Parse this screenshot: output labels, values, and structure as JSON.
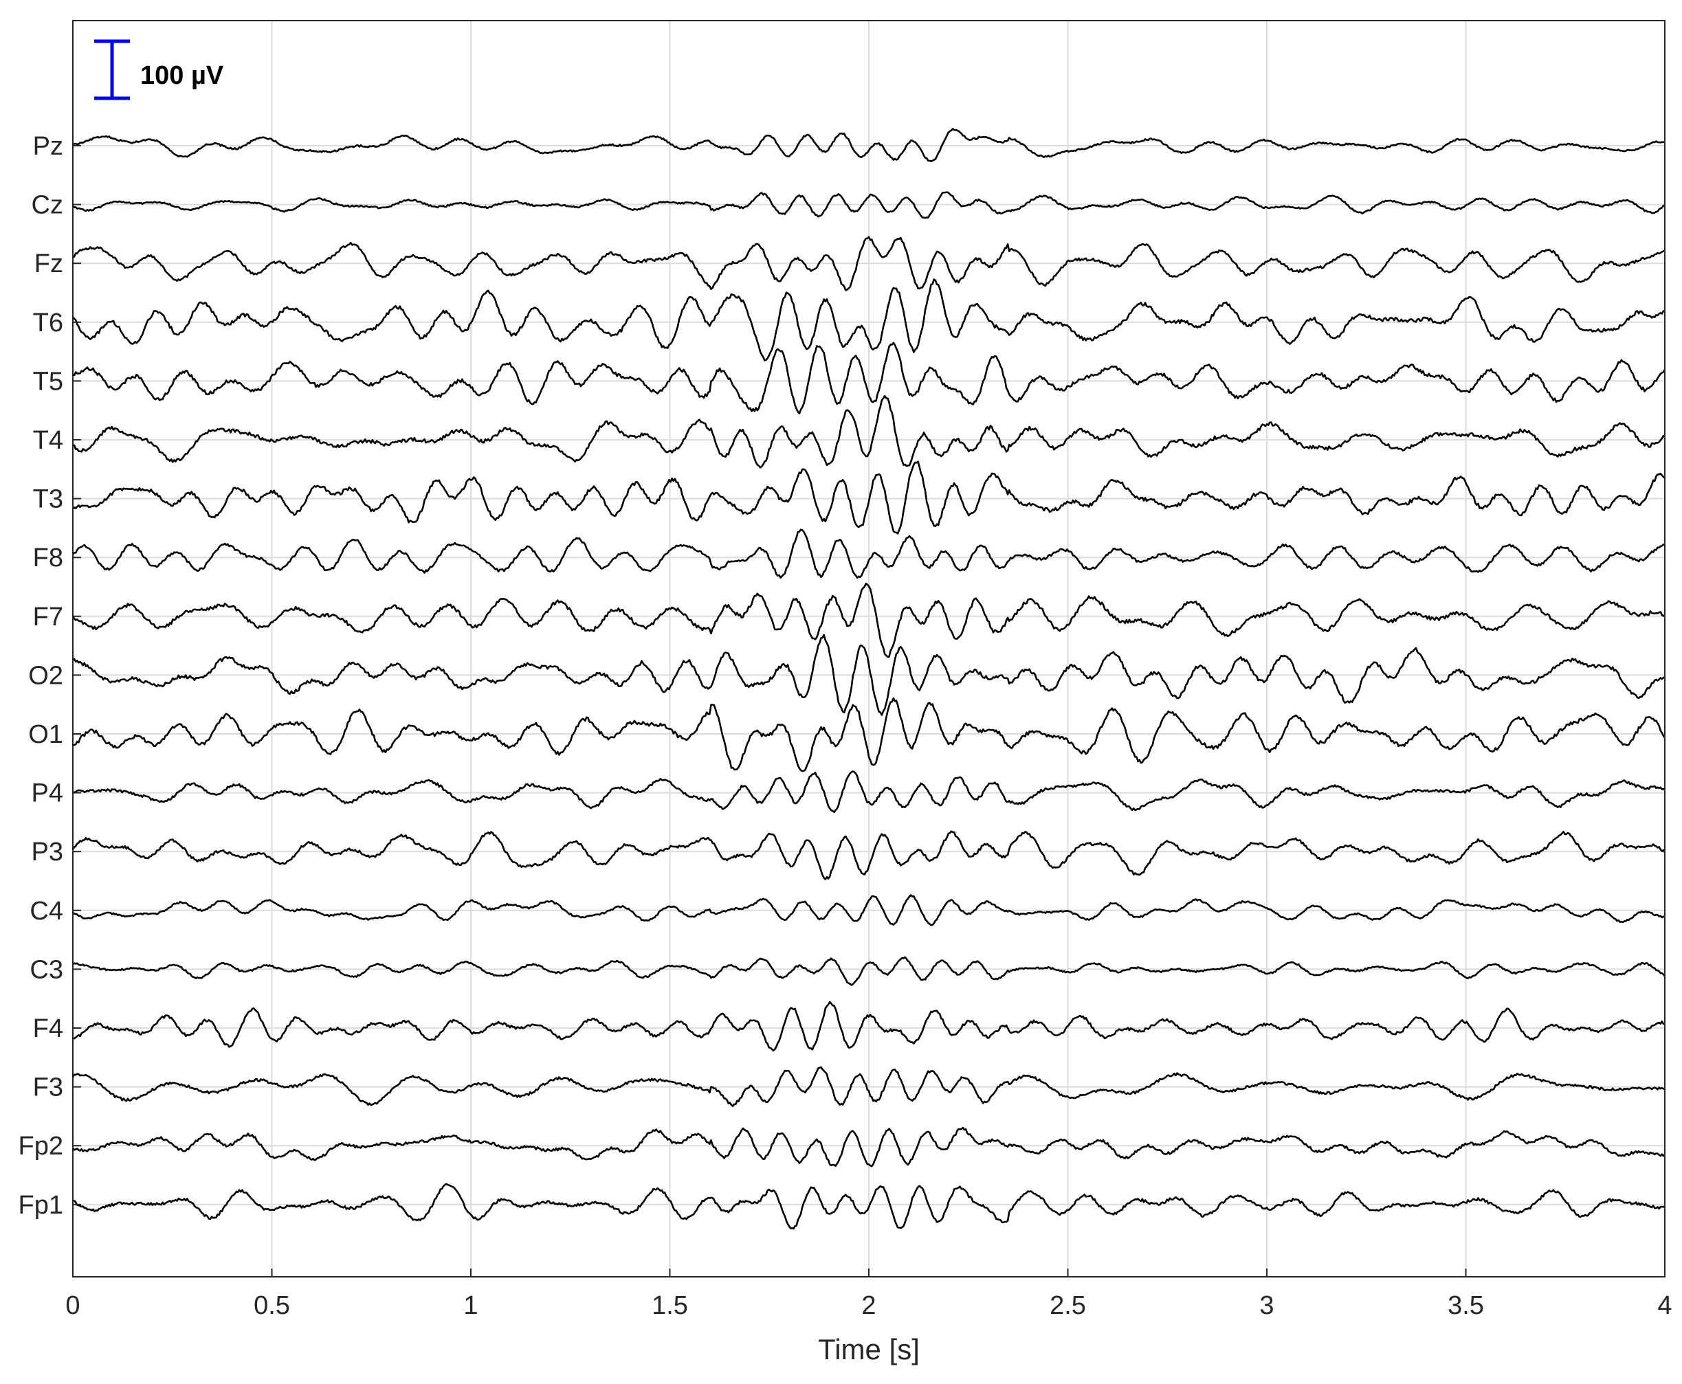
{
  "chart_data": {
    "type": "line",
    "title": "",
    "xlabel": "Time [s]",
    "ylabel": "",
    "xlim": [
      0,
      4
    ],
    "x_ticks": [
      "0",
      "0.5",
      "1",
      "1.5",
      "2",
      "2.5",
      "3",
      "3.5",
      "4"
    ],
    "x_tick_values": [
      0,
      0.5,
      1,
      1.5,
      2,
      2.5,
      3,
      3.5,
      4
    ],
    "grid": true,
    "line_color": "#000000",
    "grid_color": "#dcdcdc",
    "scale_bar": {
      "label": "100 µV",
      "value_uV": 100,
      "color": "#0000ff"
    },
    "channels": [
      "Pz",
      "Cz",
      "Fz",
      "T6",
      "T5",
      "T4",
      "T3",
      "F8",
      "F7",
      "O2",
      "O1",
      "P4",
      "P3",
      "C4",
      "C3",
      "F4",
      "F3",
      "Fp2",
      "Fp1"
    ],
    "events": [
      {
        "description": "burst of high-amplitude sharp activity across channels",
        "start_s": 1.6,
        "end_s": 2.35
      }
    ],
    "channel_character": {
      "Pz": "low",
      "Cz": "low",
      "Fz": "medium",
      "T6": "high",
      "T5": "high",
      "T4": "high",
      "T3": "high",
      "F8": "medium",
      "F7": "high",
      "O2": "high",
      "O1": "high",
      "P4": "medium",
      "P3": "medium",
      "C4": "low",
      "C3": "low",
      "F4": "medium",
      "F3": "medium",
      "Fp2": "medium",
      "Fp1": "medium"
    }
  }
}
